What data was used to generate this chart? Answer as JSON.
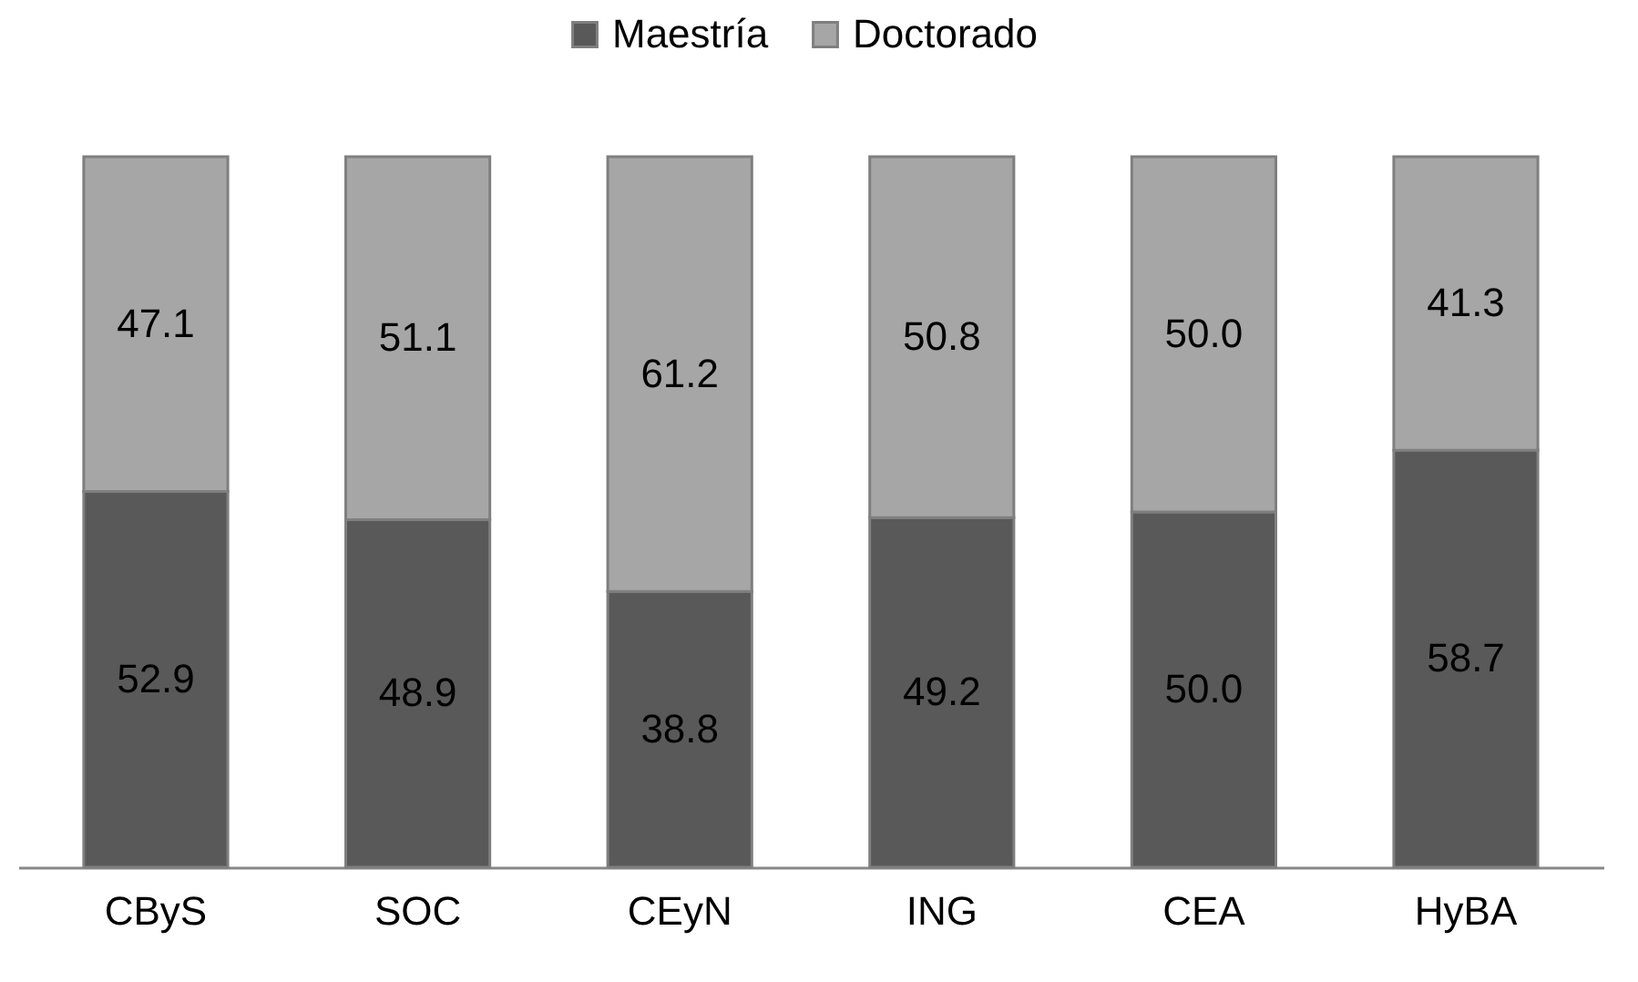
{
  "chart_data": {
    "type": "bar",
    "stacked": true,
    "legend": "top",
    "grid": false,
    "tick_labels": "x",
    "categories": [
      "CByS",
      "SOC",
      "CEyN",
      "ING",
      "CEA",
      "HyBA"
    ],
    "series": [
      {
        "name": "Maestría",
        "color": "#595959",
        "values": [
          52.9,
          48.9,
          38.8,
          49.2,
          50.0,
          58.7
        ],
        "value_labels": [
          "52.9",
          "48.9",
          "38.8",
          "49.2",
          "50.0",
          "58.7"
        ]
      },
      {
        "name": "Doctorado",
        "color": "#a6a6a6",
        "values": [
          47.1,
          51.1,
          61.2,
          50.8,
          50.0,
          41.3
        ],
        "value_labels": [
          "47.1",
          "51.1",
          "61.2",
          "50.8",
          "50.0",
          "41.3"
        ]
      }
    ]
  }
}
